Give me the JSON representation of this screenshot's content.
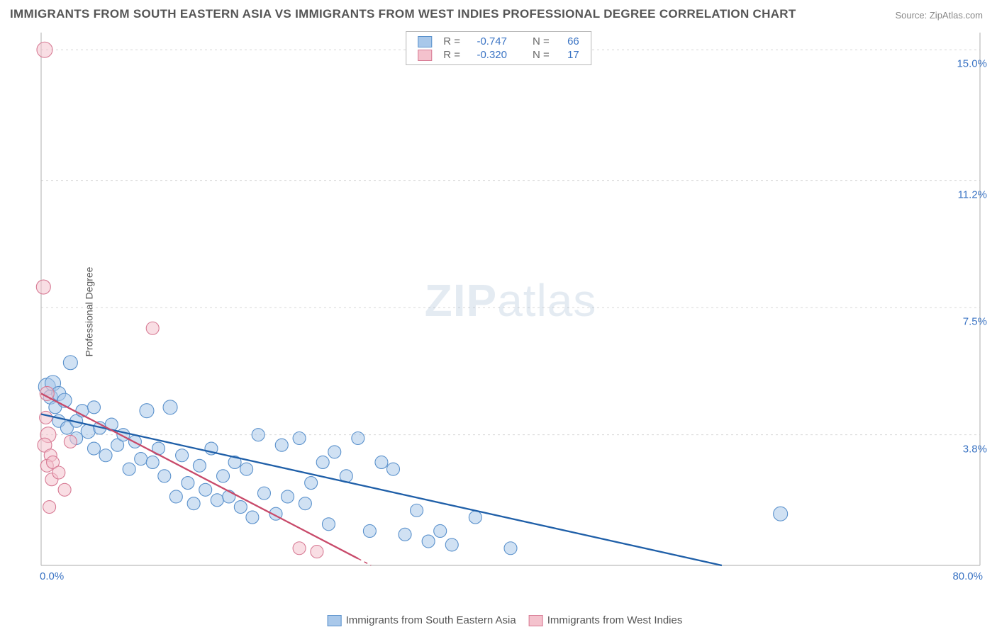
{
  "title": "IMMIGRANTS FROM SOUTH EASTERN ASIA VS IMMIGRANTS FROM WEST INDIES PROFESSIONAL DEGREE CORRELATION CHART",
  "source": "Source: ZipAtlas.com",
  "ylabel": "Professional Degree",
  "watermark_bold": "ZIP",
  "watermark_rest": "atlas",
  "series": [
    {
      "key": "sea",
      "name": "Immigrants from South Eastern Asia",
      "fill": "#a9c8ea",
      "stroke": "#5a91cc",
      "line_color": "#1f5fa8",
      "R": "-0.747",
      "N": "66",
      "trend": {
        "x0": 0,
        "y0": 4.4,
        "x1": 58,
        "y1": 0.0
      },
      "points": [
        {
          "x": 0.5,
          "y": 5.2,
          "r": 12
        },
        {
          "x": 0.8,
          "y": 4.9,
          "r": 10
        },
        {
          "x": 1.0,
          "y": 5.3,
          "r": 11
        },
        {
          "x": 1.2,
          "y": 4.6,
          "r": 9
        },
        {
          "x": 1.5,
          "y": 5.0,
          "r": 10
        },
        {
          "x": 1.5,
          "y": 4.2,
          "r": 9
        },
        {
          "x": 2.0,
          "y": 4.8,
          "r": 10
        },
        {
          "x": 2.2,
          "y": 4.0,
          "r": 9
        },
        {
          "x": 2.5,
          "y": 5.9,
          "r": 10
        },
        {
          "x": 3.0,
          "y": 4.2,
          "r": 9
        },
        {
          "x": 3.0,
          "y": 3.7,
          "r": 9
        },
        {
          "x": 3.5,
          "y": 4.5,
          "r": 9
        },
        {
          "x": 4.0,
          "y": 3.9,
          "r": 10
        },
        {
          "x": 4.5,
          "y": 4.6,
          "r": 9
        },
        {
          "x": 4.5,
          "y": 3.4,
          "r": 9
        },
        {
          "x": 5.0,
          "y": 4.0,
          "r": 9
        },
        {
          "x": 5.5,
          "y": 3.2,
          "r": 9
        },
        {
          "x": 6.0,
          "y": 4.1,
          "r": 9
        },
        {
          "x": 6.5,
          "y": 3.5,
          "r": 9
        },
        {
          "x": 7.0,
          "y": 3.8,
          "r": 9
        },
        {
          "x": 7.5,
          "y": 2.8,
          "r": 9
        },
        {
          "x": 8.0,
          "y": 3.6,
          "r": 9
        },
        {
          "x": 8.5,
          "y": 3.1,
          "r": 9
        },
        {
          "x": 9.0,
          "y": 4.5,
          "r": 10
        },
        {
          "x": 9.5,
          "y": 3.0,
          "r": 9
        },
        {
          "x": 10.0,
          "y": 3.4,
          "r": 9
        },
        {
          "x": 10.5,
          "y": 2.6,
          "r": 9
        },
        {
          "x": 11.0,
          "y": 4.6,
          "r": 10
        },
        {
          "x": 11.5,
          "y": 2.0,
          "r": 9
        },
        {
          "x": 12.0,
          "y": 3.2,
          "r": 9
        },
        {
          "x": 12.5,
          "y": 2.4,
          "r": 9
        },
        {
          "x": 13.0,
          "y": 1.8,
          "r": 9
        },
        {
          "x": 13.5,
          "y": 2.9,
          "r": 9
        },
        {
          "x": 14.0,
          "y": 2.2,
          "r": 9
        },
        {
          "x": 14.5,
          "y": 3.4,
          "r": 9
        },
        {
          "x": 15.0,
          "y": 1.9,
          "r": 9
        },
        {
          "x": 15.5,
          "y": 2.6,
          "r": 9
        },
        {
          "x": 16.0,
          "y": 2.0,
          "r": 9
        },
        {
          "x": 16.5,
          "y": 3.0,
          "r": 9
        },
        {
          "x": 17.0,
          "y": 1.7,
          "r": 9
        },
        {
          "x": 17.5,
          "y": 2.8,
          "r": 9
        },
        {
          "x": 18.0,
          "y": 1.4,
          "r": 9
        },
        {
          "x": 18.5,
          "y": 3.8,
          "r": 9
        },
        {
          "x": 19.0,
          "y": 2.1,
          "r": 9
        },
        {
          "x": 20.0,
          "y": 1.5,
          "r": 9
        },
        {
          "x": 20.5,
          "y": 3.5,
          "r": 9
        },
        {
          "x": 21.0,
          "y": 2.0,
          "r": 9
        },
        {
          "x": 22.0,
          "y": 3.7,
          "r": 9
        },
        {
          "x": 22.5,
          "y": 1.8,
          "r": 9
        },
        {
          "x": 23.0,
          "y": 2.4,
          "r": 9
        },
        {
          "x": 24.0,
          "y": 3.0,
          "r": 9
        },
        {
          "x": 24.5,
          "y": 1.2,
          "r": 9
        },
        {
          "x": 25.0,
          "y": 3.3,
          "r": 9
        },
        {
          "x": 26.0,
          "y": 2.6,
          "r": 9
        },
        {
          "x": 27.0,
          "y": 3.7,
          "r": 9
        },
        {
          "x": 28.0,
          "y": 1.0,
          "r": 9
        },
        {
          "x": 29.0,
          "y": 3.0,
          "r": 9
        },
        {
          "x": 30.0,
          "y": 2.8,
          "r": 9
        },
        {
          "x": 31.0,
          "y": 0.9,
          "r": 9
        },
        {
          "x": 32.0,
          "y": 1.6,
          "r": 9
        },
        {
          "x": 33.0,
          "y": 0.7,
          "r": 9
        },
        {
          "x": 34.0,
          "y": 1.0,
          "r": 9
        },
        {
          "x": 35.0,
          "y": 0.6,
          "r": 9
        },
        {
          "x": 37.0,
          "y": 1.4,
          "r": 9
        },
        {
          "x": 40.0,
          "y": 0.5,
          "r": 9
        },
        {
          "x": 63.0,
          "y": 1.5,
          "r": 10
        }
      ]
    },
    {
      "key": "wi",
      "name": "Immigrants from West Indies",
      "fill": "#f4c2cd",
      "stroke": "#d77a94",
      "line_color": "#c84a6a",
      "R": "-0.320",
      "N": "17",
      "trend": {
        "x0": 0,
        "y0": 5.0,
        "x1": 27,
        "y1": 0.2
      },
      "trend_extend": {
        "x0": 27,
        "y0": 0.2,
        "x1": 32,
        "y1": -0.7
      },
      "points": [
        {
          "x": 0.3,
          "y": 15.0,
          "r": 11
        },
        {
          "x": 0.2,
          "y": 8.1,
          "r": 10
        },
        {
          "x": 0.5,
          "y": 5.0,
          "r": 10
        },
        {
          "x": 0.4,
          "y": 4.3,
          "r": 9
        },
        {
          "x": 0.6,
          "y": 3.8,
          "r": 11
        },
        {
          "x": 0.3,
          "y": 3.5,
          "r": 10
        },
        {
          "x": 0.8,
          "y": 3.2,
          "r": 9
        },
        {
          "x": 0.5,
          "y": 2.9,
          "r": 9
        },
        {
          "x": 1.0,
          "y": 3.0,
          "r": 9
        },
        {
          "x": 0.9,
          "y": 2.5,
          "r": 9
        },
        {
          "x": 1.5,
          "y": 2.7,
          "r": 9
        },
        {
          "x": 0.7,
          "y": 1.7,
          "r": 9
        },
        {
          "x": 2.0,
          "y": 2.2,
          "r": 9
        },
        {
          "x": 2.5,
          "y": 3.6,
          "r": 9
        },
        {
          "x": 9.5,
          "y": 6.9,
          "r": 9
        },
        {
          "x": 22.0,
          "y": 0.5,
          "r": 9
        },
        {
          "x": 23.5,
          "y": 0.4,
          "r": 9
        }
      ]
    }
  ],
  "chart": {
    "xlim": [
      0,
      80
    ],
    "ylim": [
      0,
      15.5
    ],
    "x_min_label": "0.0%",
    "x_max_label": "80.0%",
    "yticks": [
      {
        "v": 3.8,
        "label": "3.8%"
      },
      {
        "v": 7.5,
        "label": "7.5%"
      },
      {
        "v": 11.2,
        "label": "11.2%"
      },
      {
        "v": 15.0,
        "label": "15.0%"
      }
    ],
    "plot_bg": "#ffffff",
    "grid_color": "#d6d6d6",
    "axis_color": "#bcbcbc",
    "tick_label_color": "#3b74c4",
    "legend_label_color": "#6a6a6a",
    "legend_value_color": "#3b74c4",
    "marker_opacity": 0.55,
    "line_width": 2.3,
    "title_color": "#555555",
    "title_fontsize": 17
  },
  "labels": {
    "R_label": "R =",
    "N_label": "N ="
  }
}
